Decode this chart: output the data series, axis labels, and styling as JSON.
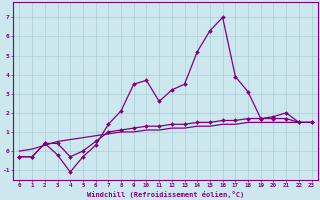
{
  "x": [
    0,
    1,
    2,
    3,
    4,
    5,
    6,
    7,
    8,
    9,
    10,
    11,
    12,
    13,
    14,
    15,
    16,
    17,
    18,
    19,
    20,
    21,
    22,
    23
  ],
  "line1": [
    -0.3,
    -0.3,
    0.4,
    -0.2,
    -1.1,
    -0.3,
    0.3,
    1.4,
    2.1,
    3.5,
    3.7,
    2.6,
    3.2,
    3.5,
    5.2,
    6.3,
    7.0,
    3.9,
    3.1,
    1.7,
    1.8,
    2.0,
    1.5,
    1.5
  ],
  "line2": [
    -0.3,
    -0.3,
    0.4,
    0.4,
    -0.3,
    0.0,
    0.5,
    1.0,
    1.1,
    1.2,
    1.3,
    1.3,
    1.4,
    1.4,
    1.5,
    1.5,
    1.6,
    1.6,
    1.7,
    1.7,
    1.7,
    1.7,
    1.5,
    1.5
  ],
  "line3": [
    0.0,
    0.1,
    0.3,
    0.5,
    0.6,
    0.7,
    0.8,
    0.9,
    1.0,
    1.0,
    1.1,
    1.1,
    1.2,
    1.2,
    1.3,
    1.3,
    1.4,
    1.4,
    1.5,
    1.5,
    1.5,
    1.5,
    1.5,
    1.5
  ],
  "line_color": "#800080",
  "bg_color": "#cce8ee",
  "grid_color": "#aacdd5",
  "xlabel": "Windchill (Refroidissement éolien,°C)",
  "ylim": [
    -1.5,
    7.8
  ],
  "xlim": [
    -0.5,
    23.5
  ],
  "yticks": [
    -1,
    0,
    1,
    2,
    3,
    4,
    5,
    6,
    7
  ],
  "xticks": [
    0,
    1,
    2,
    3,
    4,
    5,
    6,
    7,
    8,
    9,
    10,
    11,
    12,
    13,
    14,
    15,
    16,
    17,
    18,
    19,
    20,
    21,
    22,
    23
  ]
}
